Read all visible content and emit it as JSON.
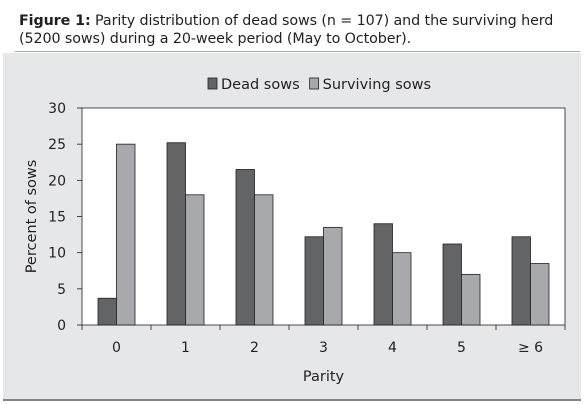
{
  "figure": {
    "caption_label": "Figure 1:",
    "caption_text": " Parity distribution of dead sows (n = 107) and the surviving herd (5200 sows) during a 20-week period (May to October)."
  },
  "colors": {
    "panel_background": "#e6e7e8",
    "plot_background": "#ffffff",
    "dead_sows": "#636466",
    "surviving_sows": "#a7a9ac",
    "text": "#231f20"
  },
  "chart_data": {
    "type": "bar",
    "title": "",
    "xlabel": "Parity",
    "ylabel": "Percent of sows",
    "ylim": [
      0,
      30
    ],
    "yticks": [
      0,
      5,
      10,
      15,
      20,
      25,
      30
    ],
    "grid": false,
    "legend_position": "top-center",
    "categories": [
      "0",
      "1",
      "2",
      "3",
      "4",
      "5",
      "≥ 6"
    ],
    "series": [
      {
        "name": "Dead sows",
        "values": [
          3.7,
          25.2,
          21.5,
          12.2,
          14.0,
          11.2,
          12.2
        ]
      },
      {
        "name": "Surviving sows",
        "values": [
          25.0,
          18.0,
          18.0,
          13.5,
          10.0,
          7.0,
          8.5
        ]
      }
    ]
  }
}
